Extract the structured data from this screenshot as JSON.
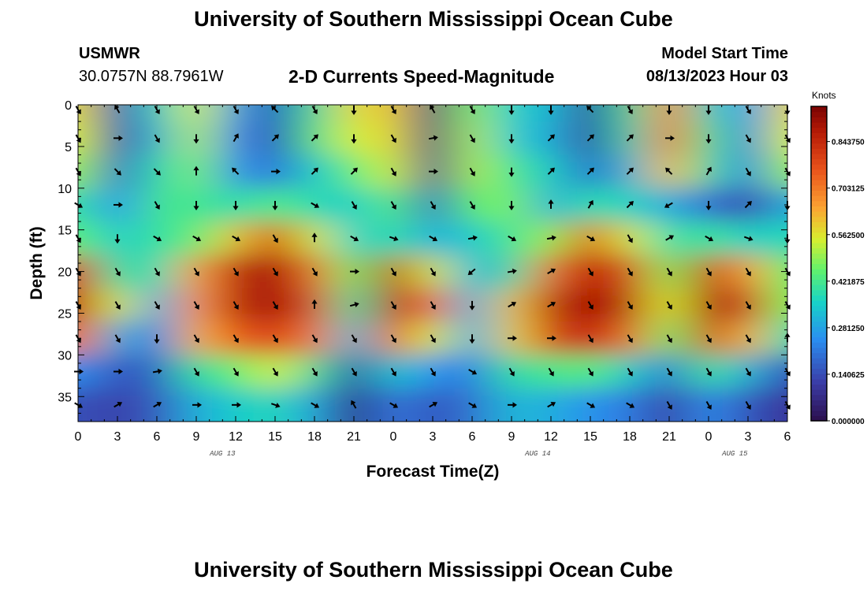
{
  "header": {
    "title": "University of Southern Mississippi Ocean Cube",
    "station_name": "USMWR",
    "station_coords": "30.0757N  88.7961W",
    "plot_title": "2-D Currents Speed-Magnitude",
    "model_label": "Model Start Time",
    "model_time": "08/13/2023 Hour 03"
  },
  "footer": {
    "title": "University of Southern Mississippi Ocean Cube"
  },
  "chart_data": {
    "type": "heatmap",
    "title": "2-D Currents Speed-Magnitude",
    "xlabel": "Forecast Time(Z)",
    "ylabel": "Depth (ft)",
    "x_tick_labels": [
      "0",
      "3",
      "6",
      "9",
      "12",
      "15",
      "18",
      "21",
      "0",
      "3",
      "6",
      "9",
      "12",
      "15",
      "18",
      "21",
      "0",
      "3",
      "6"
    ],
    "x_range_hours": [
      0,
      54
    ],
    "date_labels": [
      {
        "text": "AUG 13",
        "hour": 11
      },
      {
        "text": "AUG 14",
        "hour": 35
      },
      {
        "text": "AUG 15",
        "hour": 50
      }
    ],
    "y_ticks": [
      0,
      5,
      10,
      15,
      20,
      25,
      30,
      35
    ],
    "ylim": [
      0,
      38
    ],
    "colorbar": {
      "label": "Knots",
      "range": [
        0,
        0.95
      ],
      "tick_values": [
        0.0,
        0.140625,
        0.28125,
        0.421875,
        0.5625,
        0.703125,
        0.84375
      ],
      "tick_labels": [
        "0.000000",
        "0.140625",
        "0.281250",
        "0.421875",
        "0.562500",
        "0.703125",
        "0.843750"
      ]
    },
    "grid_hours": [
      0,
      3,
      6,
      9,
      12,
      15,
      18,
      21,
      24,
      27,
      30,
      33,
      36,
      39,
      42,
      45,
      48,
      51,
      54
    ],
    "grid_depths": [
      0,
      4,
      8,
      12,
      16,
      20,
      24,
      28,
      32,
      36
    ],
    "speed_knots": [
      [
        0.58,
        0.14,
        0.35,
        0.55,
        0.28,
        0.14,
        0.4,
        0.58,
        0.6,
        0.08,
        0.5,
        0.35,
        0.32,
        0.1,
        0.4,
        0.7,
        0.38,
        0.25,
        0.58
      ],
      [
        0.55,
        0.12,
        0.32,
        0.52,
        0.24,
        0.14,
        0.42,
        0.55,
        0.58,
        0.08,
        0.52,
        0.35,
        0.3,
        0.1,
        0.38,
        0.72,
        0.42,
        0.22,
        0.55
      ],
      [
        0.5,
        0.18,
        0.38,
        0.48,
        0.26,
        0.2,
        0.35,
        0.45,
        0.55,
        0.1,
        0.52,
        0.42,
        0.35,
        0.18,
        0.32,
        0.62,
        0.4,
        0.22,
        0.5
      ],
      [
        0.4,
        0.25,
        0.42,
        0.42,
        0.38,
        0.44,
        0.38,
        0.35,
        0.45,
        0.18,
        0.45,
        0.48,
        0.3,
        0.4,
        0.36,
        0.3,
        0.2,
        0.12,
        0.3
      ],
      [
        0.45,
        0.35,
        0.4,
        0.45,
        0.6,
        0.82,
        0.55,
        0.35,
        0.4,
        0.3,
        0.35,
        0.42,
        0.5,
        0.78,
        0.55,
        0.38,
        0.42,
        0.35,
        0.38
      ],
      [
        0.8,
        0.4,
        0.38,
        0.65,
        0.86,
        0.9,
        0.72,
        0.45,
        0.85,
        0.55,
        0.3,
        0.4,
        0.72,
        0.88,
        0.78,
        0.48,
        0.85,
        0.65,
        0.45
      ],
      [
        0.85,
        0.55,
        0.28,
        0.66,
        0.86,
        0.9,
        0.78,
        0.4,
        0.88,
        0.7,
        0.3,
        0.6,
        0.85,
        0.9,
        0.85,
        0.55,
        0.9,
        0.8,
        0.48
      ],
      [
        0.72,
        0.3,
        0.22,
        0.62,
        0.75,
        0.8,
        0.7,
        0.32,
        0.75,
        0.55,
        0.28,
        0.58,
        0.8,
        0.85,
        0.72,
        0.45,
        0.82,
        0.62,
        0.38
      ],
      [
        0.25,
        0.15,
        0.18,
        0.4,
        0.45,
        0.55,
        0.4,
        0.12,
        0.35,
        0.25,
        0.22,
        0.4,
        0.42,
        0.45,
        0.35,
        0.2,
        0.42,
        0.3,
        0.15
      ],
      [
        0.15,
        0.12,
        0.16,
        0.3,
        0.35,
        0.38,
        0.28,
        0.05,
        0.22,
        0.15,
        0.2,
        0.32,
        0.3,
        0.25,
        0.22,
        0.1,
        0.25,
        0.15,
        0.1
      ]
    ],
    "arrow_depths": [
      0,
      4,
      8,
      12,
      16,
      20,
      24,
      28,
      32,
      36
    ],
    "direction_deg": [
      [
        150,
        330,
        150,
        150,
        150,
        315,
        150,
        180,
        150,
        330,
        150,
        180,
        180,
        315,
        150,
        180,
        180,
        150,
        180
      ],
      [
        150,
        90,
        150,
        180,
        30,
        45,
        45,
        180,
        150,
        80,
        150,
        180,
        45,
        45,
        45,
        90,
        180,
        150,
        150
      ],
      [
        150,
        135,
        135,
        0,
        315,
        90,
        45,
        45,
        150,
        90,
        150,
        180,
        45,
        45,
        45,
        315,
        30,
        150,
        150
      ],
      [
        120,
        90,
        150,
        180,
        180,
        180,
        120,
        150,
        150,
        150,
        150,
        180,
        0,
        30,
        45,
        240,
        180,
        45,
        180
      ],
      [
        150,
        180,
        120,
        120,
        120,
        150,
        0,
        120,
        110,
        120,
        80,
        120,
        80,
        120,
        150,
        60,
        120,
        110,
        180
      ],
      [
        150,
        150,
        150,
        150,
        150,
        150,
        150,
        90,
        150,
        150,
        230,
        80,
        60,
        150,
        150,
        150,
        150,
        150,
        150
      ],
      [
        150,
        150,
        150,
        150,
        150,
        150,
        0,
        75,
        150,
        150,
        180,
        60,
        60,
        150,
        150,
        150,
        150,
        150,
        150
      ],
      [
        150,
        150,
        180,
        150,
        150,
        150,
        150,
        150,
        150,
        150,
        180,
        90,
        90,
        150,
        150,
        150,
        150,
        150,
        0
      ],
      [
        90,
        90,
        80,
        150,
        150,
        150,
        150,
        150,
        150,
        150,
        120,
        150,
        150,
        150,
        150,
        150,
        150,
        150,
        150
      ],
      [
        120,
        60,
        60,
        90,
        90,
        110,
        120,
        330,
        120,
        60,
        120,
        90,
        60,
        120,
        120,
        150,
        150,
        150,
        150
      ]
    ]
  }
}
